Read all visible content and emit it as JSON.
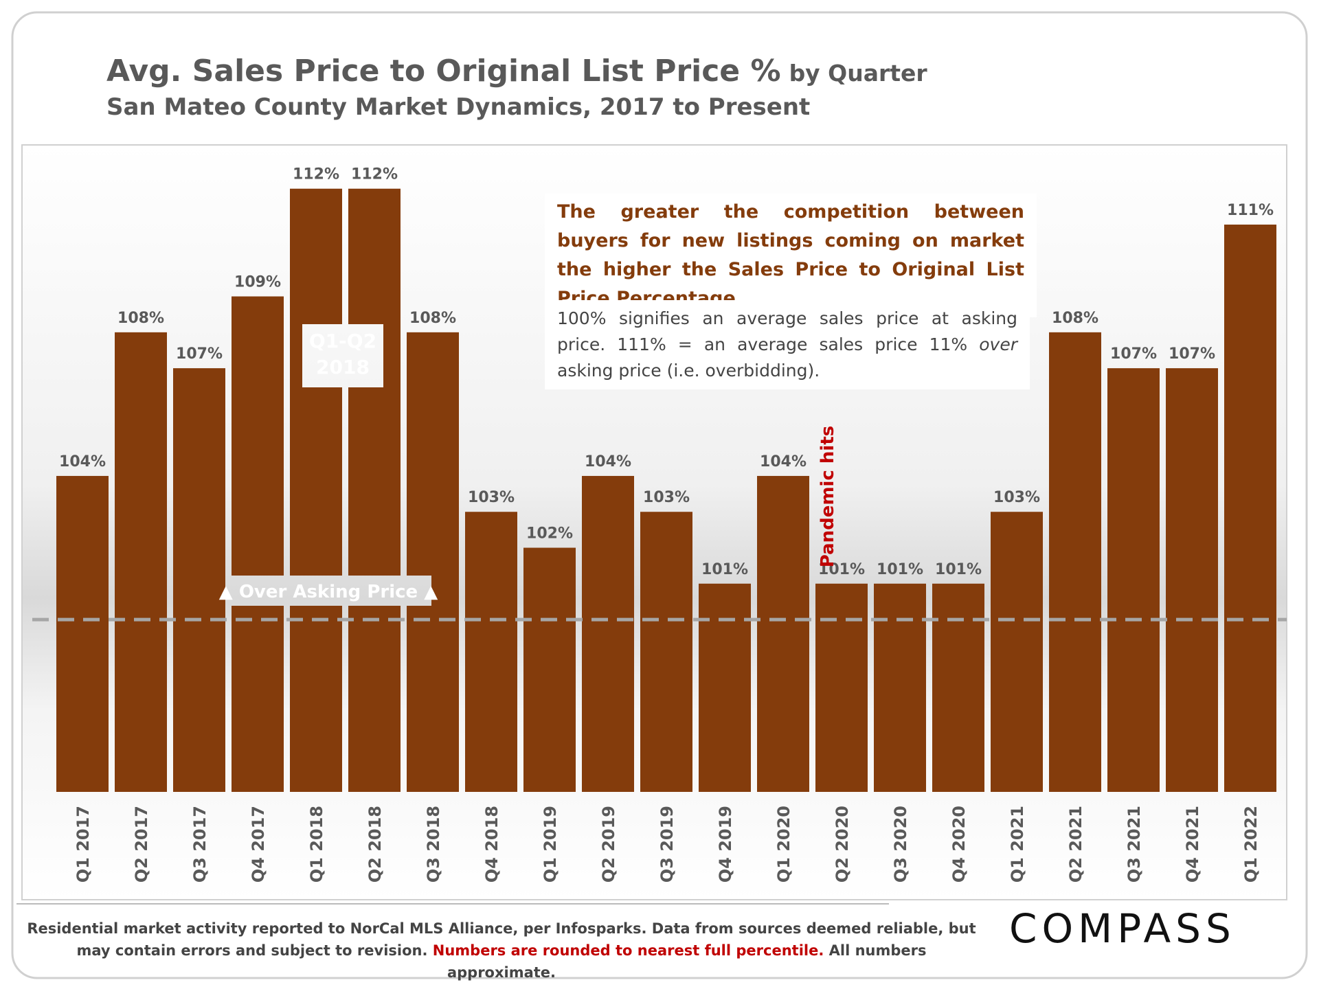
{
  "chart_data": {
    "type": "bar",
    "title": "Avg. Sales Price to Original List Price %",
    "title_note": "by Quarter",
    "subtitle": "San Mateo County Market Dynamics, 2017 to Present",
    "categories": [
      "Q1 2017",
      "Q2 2017",
      "Q3 2017",
      "Q4 2017",
      "Q1 2018",
      "Q2 2018",
      "Q3 2018",
      "Q4 2018",
      "Q1 2019",
      "Q2 2019",
      "Q3 2019",
      "Q4 2019",
      "Q1 2020",
      "Q2 2020",
      "Q3 2020",
      "Q4 2020",
      "Q1 2021",
      "Q2 2021",
      "Q3 2021",
      "Q4 2021",
      "Q1 2022"
    ],
    "values": [
      104,
      108,
      107,
      109,
      112,
      112,
      108,
      103,
      102,
      104,
      103,
      101,
      104,
      101,
      101,
      101,
      103,
      108,
      107,
      107,
      111
    ],
    "value_labels": [
      "104%",
      "108%",
      "107%",
      "109%",
      "112%",
      "112%",
      "108%",
      "103%",
      "102%",
      "104%",
      "103%",
      "101%",
      "104%",
      "101%",
      "101%",
      "101%",
      "103%",
      "108%",
      "107%",
      "107%",
      "111%"
    ],
    "color": "#843c0c",
    "ylim": [
      95.2,
      113.2
    ],
    "reference_value": 100,
    "annotations": {
      "highlight": [
        "Q1-Q2",
        "2018"
      ],
      "over_asking": "▲ Over Asking Price ▲",
      "pandemic": "Pandemic hits",
      "competition": "The greater the competition between buyers for new listings coming on market the higher the Sales Price to Original List Price Percentage.",
      "explanation": [
        "100% signifies an average sales price at asking price. 111% = an average sales price 11% ",
        "over",
        " asking price (i.e. overbidding)."
      ]
    },
    "footer": [
      "Residential market activity reported to NorCal MLS Alliance, per Infosparks. Data from sources deemed reliable, but may contain errors and subject to revision. ",
      "Numbers are rounded to nearest full percentile.",
      " All numbers  approximate."
    ],
    "logo": "COMPASS"
  }
}
